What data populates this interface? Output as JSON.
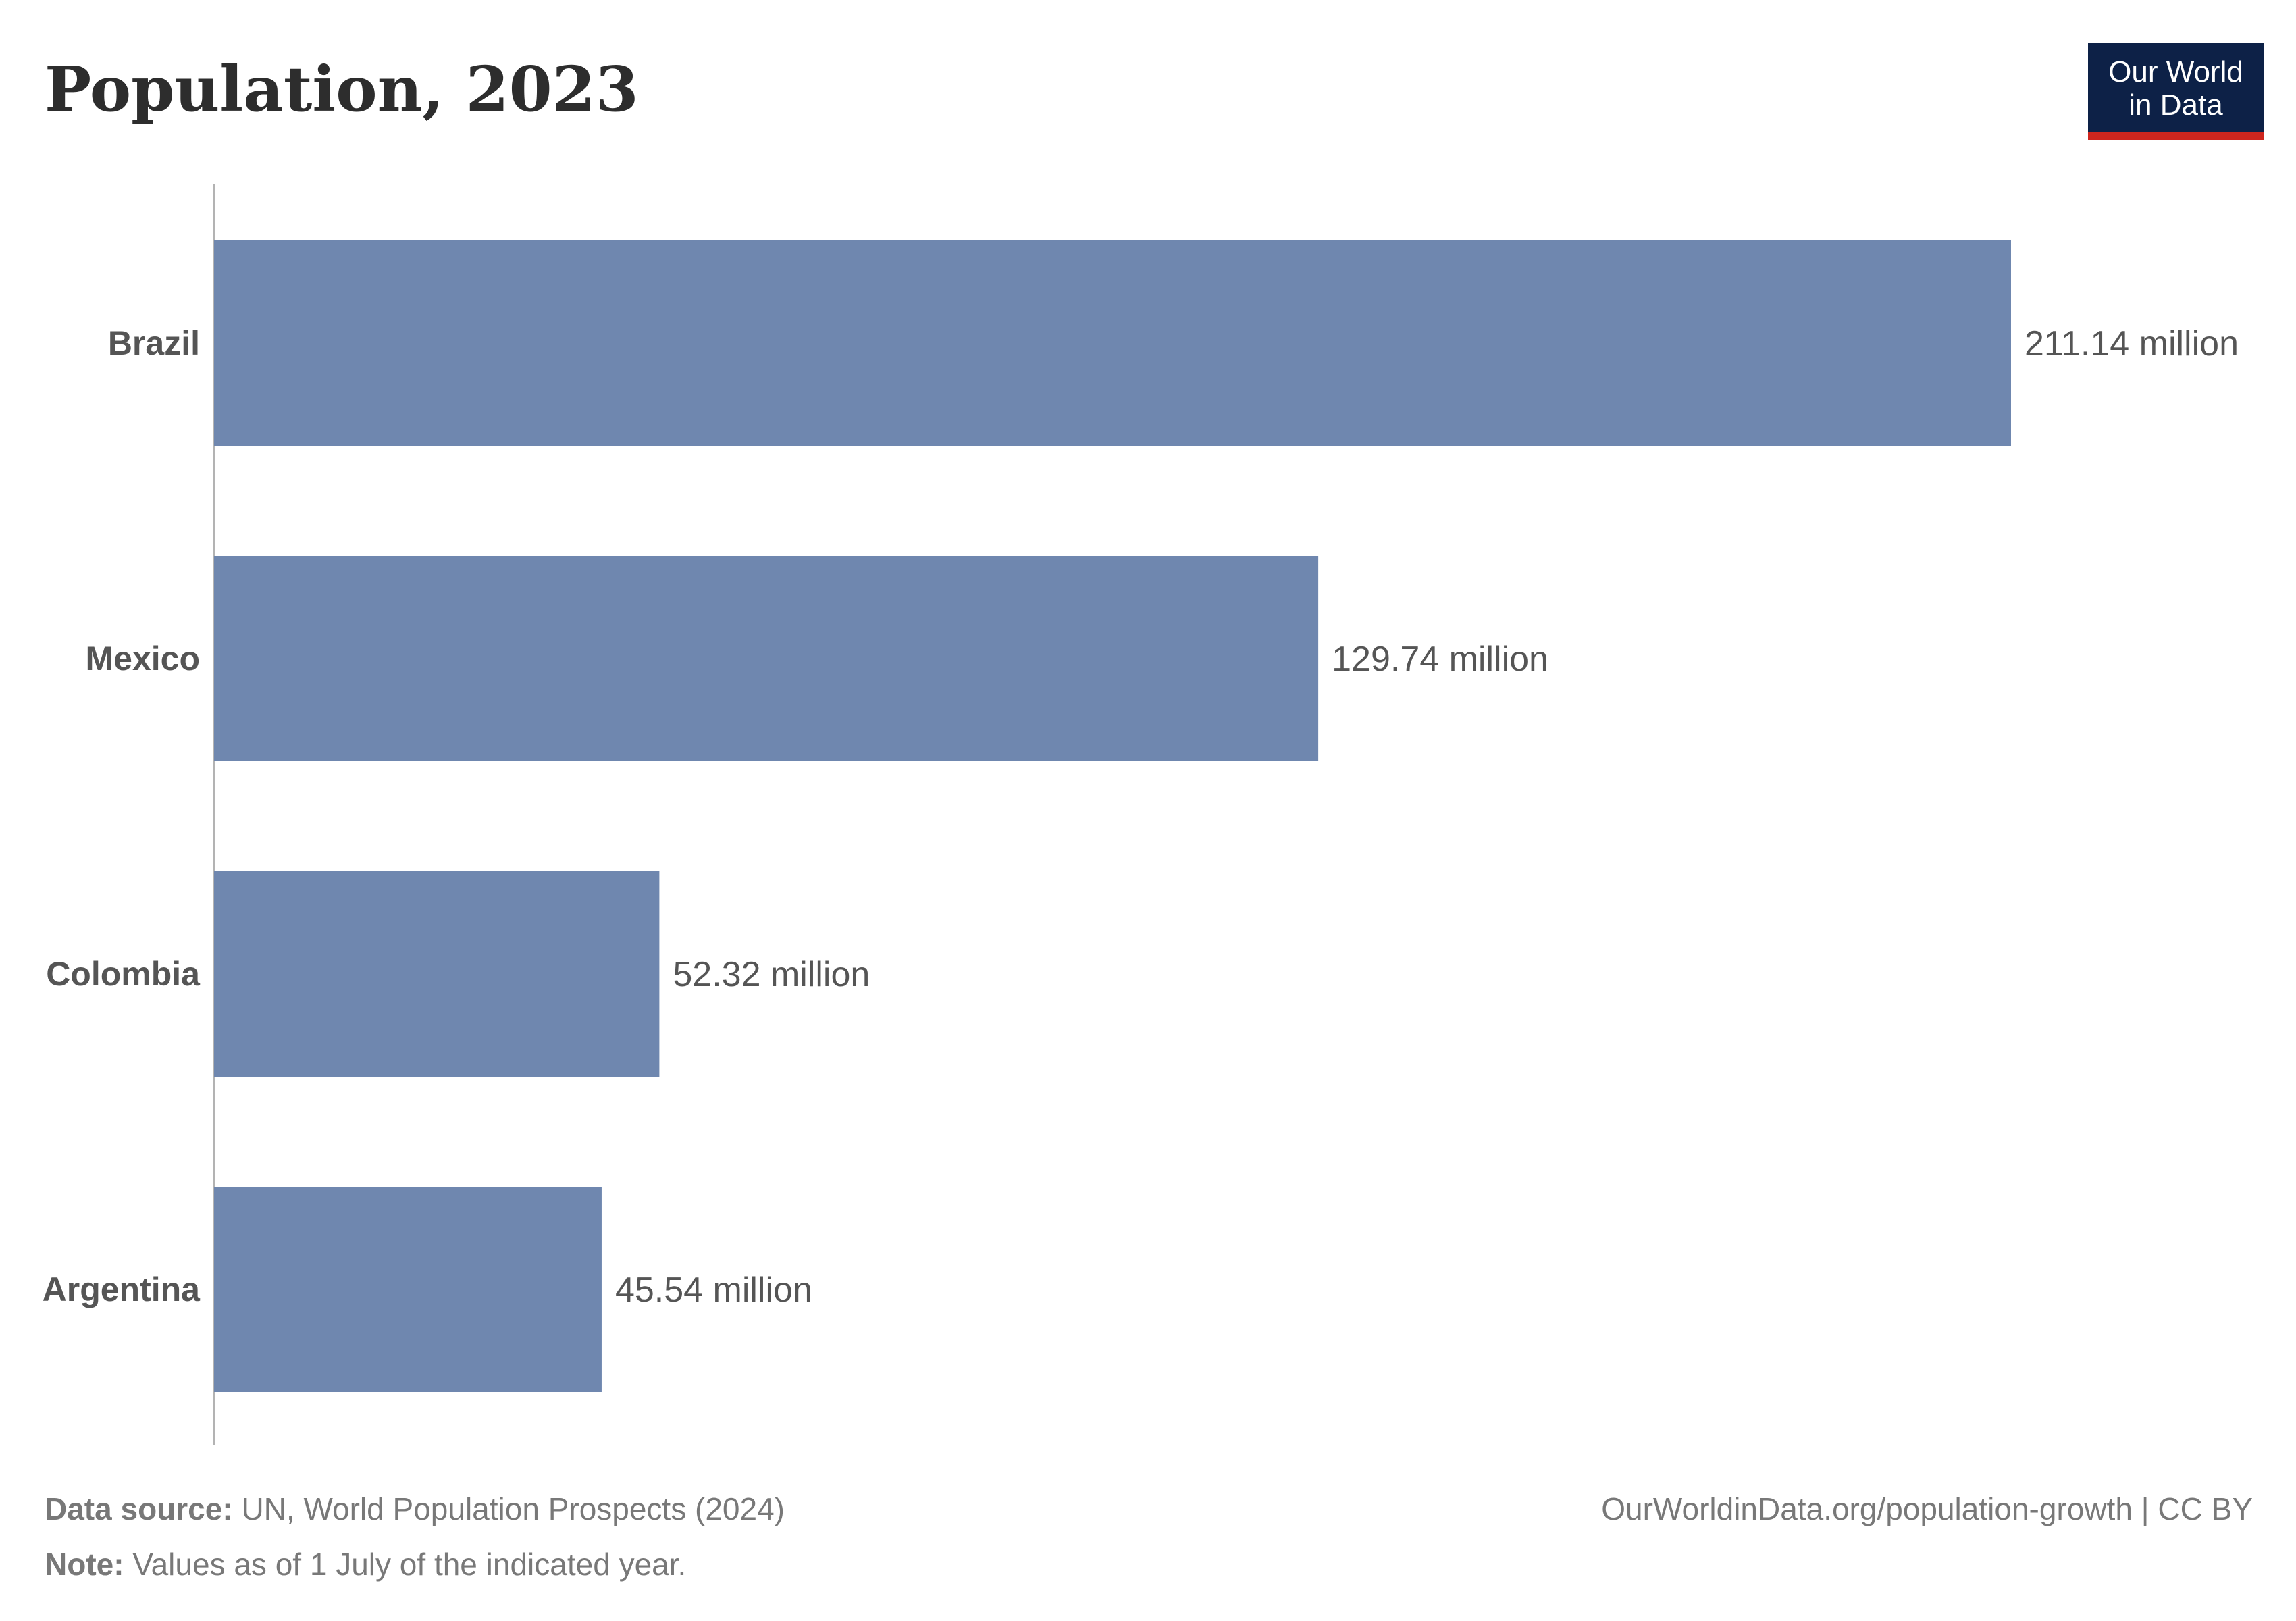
{
  "chart_data": {
    "type": "bar",
    "orientation": "horizontal",
    "title": "Population, 2023",
    "categories": [
      "Brazil",
      "Mexico",
      "Colombia",
      "Argentina"
    ],
    "values": [
      211.14,
      129.74,
      52.32,
      45.54
    ],
    "value_labels": [
      "211.14 million",
      "129.74 million",
      "52.32 million",
      "45.54 million"
    ],
    "unit": "million",
    "xlim": [
      0,
      211.14
    ],
    "grid": false,
    "bar_color": "#6f87af"
  },
  "logo": {
    "line1": "Our World",
    "line2": "in Data",
    "bg_color": "#0d2147",
    "accent_color": "#ce261e"
  },
  "footer": {
    "source_label": "Data source:",
    "source_text": "UN, World Population Prospects (2024)",
    "note_label": "Note:",
    "note_text": "Values as of 1 July of the indicated year.",
    "url": "OurWorldinData.org/population-growth | CC BY"
  }
}
